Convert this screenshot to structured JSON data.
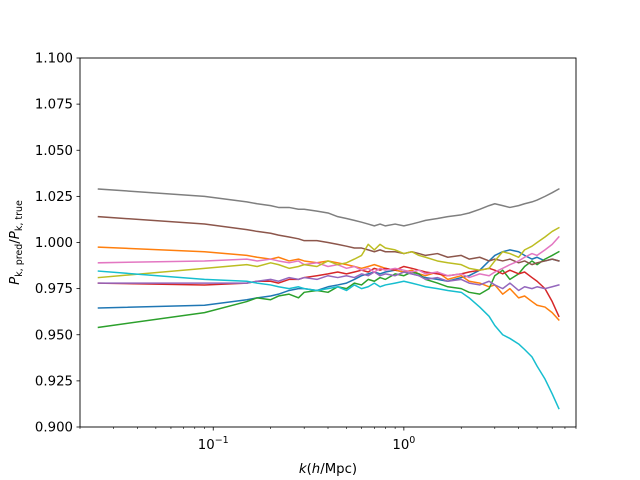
{
  "chart_data": {
    "type": "line",
    "title": "",
    "xlabel_parts": [
      "k",
      "(",
      "h",
      "/Mpc)"
    ],
    "ylabel_parts": [
      "P",
      "k, pred",
      "/",
      "P",
      "k, true"
    ],
    "xscale": "log",
    "xlim": [
      0.02,
      8.0
    ],
    "ylim": [
      0.9,
      1.1
    ],
    "xtick_labels": [
      {
        "base": "10",
        "exp": "−1",
        "value": 0.1
      },
      {
        "base": "10",
        "exp": "0",
        "value": 1.0
      }
    ],
    "yticks": [
      0.9,
      0.925,
      0.95,
      0.975,
      1.0,
      1.025,
      1.05,
      1.075,
      1.1
    ],
    "ytick_labels": [
      "0.900",
      "0.925",
      "0.950",
      "0.975",
      "1.000",
      "1.025",
      "1.050",
      "1.075",
      "1.100"
    ],
    "grid": false,
    "legend": "none",
    "x": [
      0.025,
      0.09,
      0.15,
      0.17,
      0.2,
      0.22,
      0.25,
      0.28,
      0.3,
      0.35,
      0.4,
      0.45,
      0.5,
      0.55,
      0.6,
      0.65,
      0.7,
      0.75,
      0.8,
      0.9,
      1.0,
      1.1,
      1.2,
      1.3,
      1.5,
      1.7,
      2.0,
      2.2,
      2.5,
      2.8,
      3.0,
      3.3,
      3.6,
      4.0,
      4.3,
      4.7,
      5.0,
      5.5,
      6.0,
      6.5
    ],
    "series": [
      {
        "color": "#1f77b4",
        "values": [
          0.9645,
          0.966,
          0.969,
          0.97,
          0.971,
          0.972,
          0.974,
          0.975,
          0.975,
          0.974,
          0.976,
          0.977,
          0.978,
          0.98,
          0.982,
          0.983,
          0.984,
          0.983,
          0.984,
          0.985,
          0.984,
          0.983,
          0.982,
          0.981,
          0.98,
          0.979,
          0.981,
          0.982,
          0.985,
          0.99,
          0.993,
          0.995,
          0.996,
          0.995,
          0.993,
          0.991,
          0.992,
          0.99,
          0.991,
          0.99
        ]
      },
      {
        "color": "#ff7f0e",
        "values": [
          0.9975,
          0.995,
          0.993,
          0.992,
          0.991,
          0.992,
          0.99,
          0.991,
          0.99,
          0.989,
          0.99,
          0.989,
          0.988,
          0.987,
          0.986,
          0.987,
          0.988,
          0.987,
          0.986,
          0.985,
          0.984,
          0.985,
          0.983,
          0.982,
          0.984,
          0.98,
          0.982,
          0.979,
          0.978,
          0.976,
          0.977,
          0.972,
          0.975,
          0.97,
          0.971,
          0.968,
          0.966,
          0.965,
          0.962,
          0.958
        ]
      },
      {
        "color": "#2ca02c",
        "values": [
          0.954,
          0.962,
          0.968,
          0.97,
          0.969,
          0.971,
          0.972,
          0.97,
          0.973,
          0.974,
          0.973,
          0.976,
          0.975,
          0.978,
          0.977,
          0.98,
          0.979,
          0.981,
          0.98,
          0.983,
          0.982,
          0.984,
          0.983,
          0.98,
          0.978,
          0.976,
          0.975,
          0.973,
          0.972,
          0.975,
          0.982,
          0.985,
          0.98,
          0.983,
          0.987,
          0.99,
          0.988,
          0.991,
          0.993,
          0.995
        ]
      },
      {
        "color": "#d62728",
        "values": [
          0.978,
          0.977,
          0.978,
          0.979,
          0.979,
          0.978,
          0.98,
          0.98,
          0.981,
          0.982,
          0.983,
          0.984,
          0.983,
          0.984,
          0.985,
          0.984,
          0.986,
          0.985,
          0.986,
          0.985,
          0.987,
          0.986,
          0.985,
          0.984,
          0.983,
          0.982,
          0.983,
          0.984,
          0.985,
          0.986,
          0.985,
          0.983,
          0.985,
          0.983,
          0.984,
          0.981,
          0.979,
          0.975,
          0.968,
          0.96
        ]
      },
      {
        "color": "#9467bd",
        "values": [
          0.978,
          0.978,
          0.978,
          0.979,
          0.98,
          0.979,
          0.981,
          0.98,
          0.981,
          0.98,
          0.982,
          0.981,
          0.982,
          0.981,
          0.983,
          0.982,
          0.984,
          0.982,
          0.983,
          0.982,
          0.984,
          0.983,
          0.982,
          0.98,
          0.981,
          0.979,
          0.98,
          0.978,
          0.977,
          0.979,
          0.977,
          0.975,
          0.978,
          0.974,
          0.976,
          0.975,
          0.976,
          0.975,
          0.976,
          0.977
        ]
      },
      {
        "color": "#8c564b",
        "values": [
          1.014,
          1.01,
          1.007,
          1.006,
          1.005,
          1.004,
          1.003,
          1.002,
          1.001,
          1.001,
          1.0,
          0.999,
          0.998,
          0.997,
          0.997,
          0.996,
          0.995,
          0.996,
          0.995,
          0.995,
          0.994,
          0.995,
          0.994,
          0.993,
          0.994,
          0.992,
          0.993,
          0.991,
          0.992,
          0.99,
          0.991,
          0.99,
          0.991,
          0.989,
          0.99,
          0.988,
          0.989,
          0.99,
          0.991,
          0.99
        ]
      },
      {
        "color": "#e377c2",
        "values": [
          0.989,
          0.99,
          0.991,
          0.99,
          0.991,
          0.99,
          0.989,
          0.99,
          0.988,
          0.989,
          0.987,
          0.988,
          0.986,
          0.987,
          0.985,
          0.986,
          0.984,
          0.986,
          0.985,
          0.986,
          0.985,
          0.984,
          0.985,
          0.983,
          0.984,
          0.982,
          0.983,
          0.981,
          0.983,
          0.982,
          0.984,
          0.986,
          0.988,
          0.99,
          0.992,
          0.994,
          0.993,
          0.996,
          0.999,
          1.003
        ]
      },
      {
        "color": "#7f7f7f",
        "values": [
          1.029,
          1.025,
          1.022,
          1.021,
          1.02,
          1.019,
          1.019,
          1.018,
          1.018,
          1.017,
          1.016,
          1.014,
          1.013,
          1.012,
          1.011,
          1.01,
          1.009,
          1.01,
          1.009,
          1.01,
          1.009,
          1.01,
          1.011,
          1.012,
          1.013,
          1.014,
          1.015,
          1.016,
          1.018,
          1.02,
          1.021,
          1.02,
          1.019,
          1.02,
          1.021,
          1.022,
          1.023,
          1.025,
          1.027,
          1.029
        ]
      },
      {
        "color": "#bcbd22",
        "values": [
          0.981,
          0.986,
          0.988,
          0.987,
          0.989,
          0.988,
          0.986,
          0.987,
          0.988,
          0.987,
          0.99,
          0.988,
          0.989,
          0.991,
          0.993,
          0.999,
          0.996,
          0.999,
          0.997,
          0.996,
          0.994,
          0.995,
          0.993,
          0.992,
          0.99,
          0.989,
          0.988,
          0.986,
          0.985,
          0.986,
          0.99,
          0.995,
          0.994,
          0.992,
          0.996,
          0.998,
          1.0,
          1.003,
          1.006,
          1.008
        ]
      },
      {
        "color": "#17becf",
        "values": [
          0.9845,
          0.98,
          0.979,
          0.978,
          0.977,
          0.976,
          0.975,
          0.976,
          0.975,
          0.974,
          0.975,
          0.976,
          0.974,
          0.977,
          0.975,
          0.976,
          0.978,
          0.976,
          0.977,
          0.978,
          0.979,
          0.978,
          0.977,
          0.976,
          0.975,
          0.974,
          0.973,
          0.97,
          0.965,
          0.96,
          0.955,
          0.95,
          0.948,
          0.945,
          0.942,
          0.938,
          0.933,
          0.926,
          0.918,
          0.91
        ]
      }
    ]
  }
}
